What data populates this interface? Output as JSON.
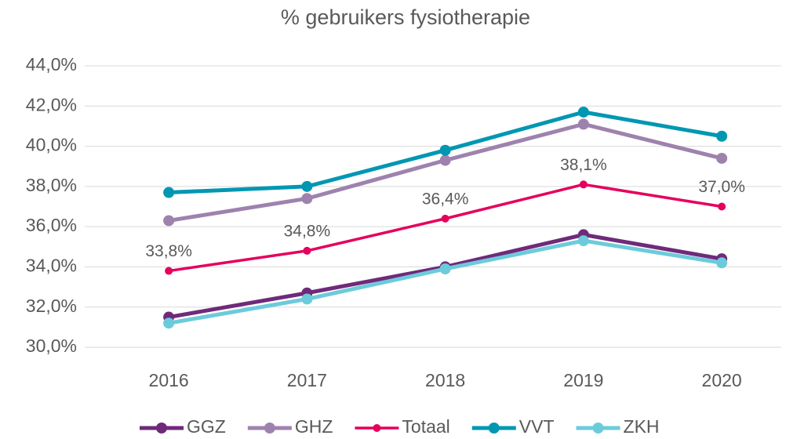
{
  "chart_data": {
    "type": "line",
    "title": "% gebruikers fysiotherapie",
    "categories": [
      "2016",
      "2017",
      "2018",
      "2019",
      "2020"
    ],
    "series": [
      {
        "name": "GGZ",
        "color": "#6f2a7a",
        "values": [
          31.5,
          32.7,
          34.0,
          35.6,
          34.4
        ]
      },
      {
        "name": "GHZ",
        "color": "#9e82ae",
        "values": [
          36.3,
          37.4,
          39.3,
          41.1,
          39.4
        ]
      },
      {
        "name": "Totaal",
        "color": "#e5005d",
        "values": [
          33.8,
          34.8,
          36.4,
          38.1,
          37.0
        ],
        "value_labels": [
          "33,8%",
          "34,8%",
          "36,4%",
          "38,1%",
          "37,0%"
        ]
      },
      {
        "name": "VVT",
        "color": "#0097b2",
        "values": [
          37.7,
          38.0,
          39.8,
          41.7,
          40.5
        ]
      },
      {
        "name": "ZKH",
        "color": "#6ccbdb",
        "values": [
          31.2,
          32.4,
          33.9,
          35.3,
          34.2
        ]
      }
    ],
    "ylim": [
      30,
      44
    ],
    "yticks": [
      {
        "value": 30,
        "label": "30,0%"
      },
      {
        "value": 32,
        "label": "32,0%"
      },
      {
        "value": 34,
        "label": "34,0%"
      },
      {
        "value": 36,
        "label": "36,0%"
      },
      {
        "value": 38,
        "label": "38,0%"
      },
      {
        "value": 40,
        "label": "40,0%"
      },
      {
        "value": 42,
        "label": "42,0%"
      },
      {
        "value": 44,
        "label": "44,0%"
      }
    ],
    "grid": true,
    "legend": "bottom"
  }
}
